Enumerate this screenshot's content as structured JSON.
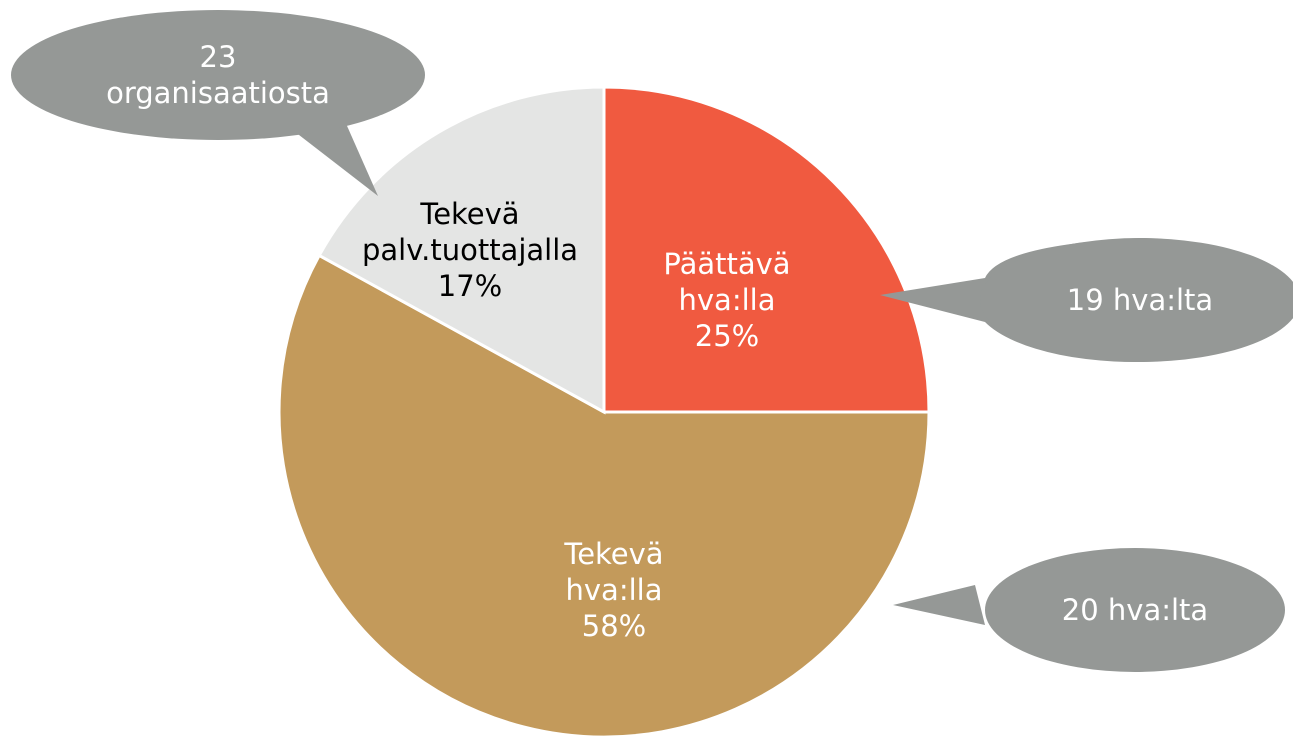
{
  "chart_data": {
    "type": "pie",
    "categories": [
      "Päättävä hva:lla",
      "Tekevä hva:lla",
      "Tekevä palv.tuottajalla"
    ],
    "values": [
      25,
      58,
      17
    ],
    "value_labels": [
      "25%",
      "58%",
      "17%"
    ],
    "colors": [
      "#f05a40",
      "#c39a5b",
      "#e4e5e4"
    ],
    "label_colors": [
      "#ffffff",
      "#ffffff",
      "#000000"
    ],
    "annotations": [
      "19 hva:lta",
      "20 hva:lta",
      "23 organisaatiosta"
    ]
  }
}
